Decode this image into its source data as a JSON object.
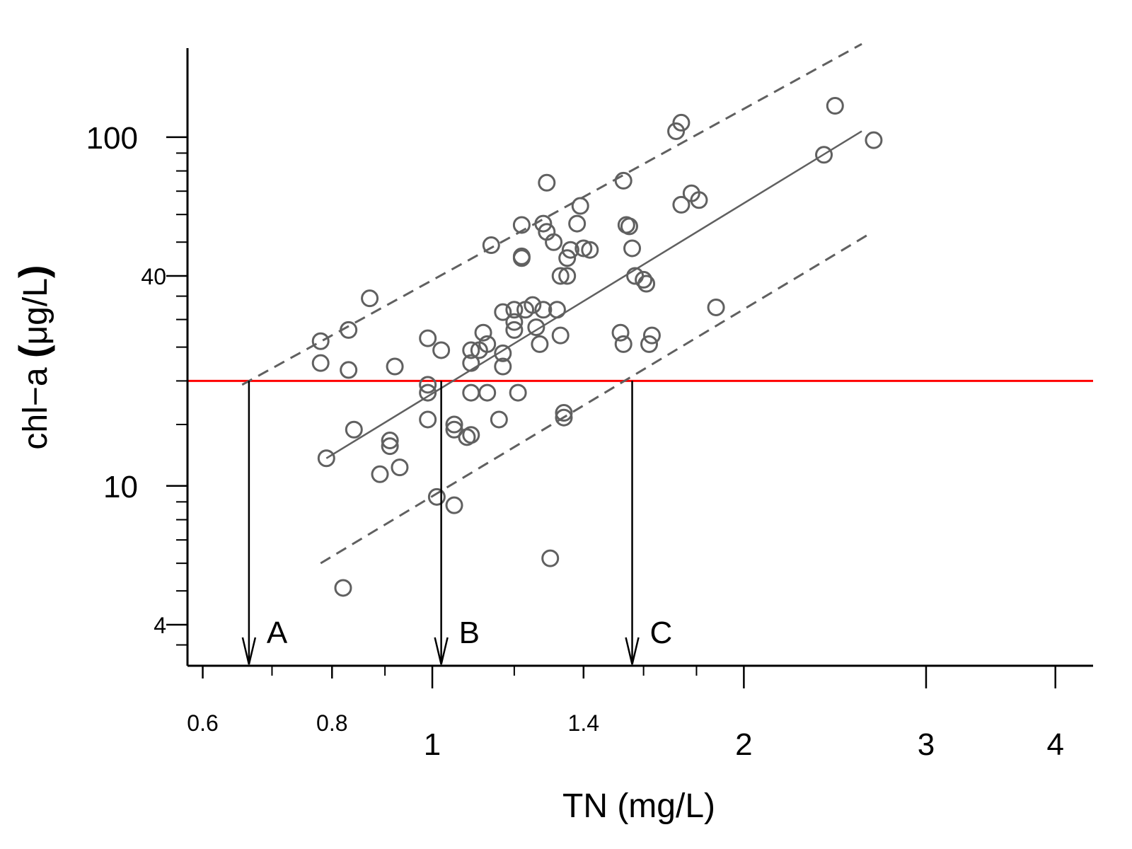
{
  "chart_data": {
    "type": "scatter",
    "title": "",
    "xlabel": "TN (mg/L)",
    "ylabel_parts": [
      "chl−a ",
      "(",
      "μg/L",
      ")"
    ],
    "xscale": "log",
    "yscale": "log",
    "xlim": [
      0.58,
      4.35
    ],
    "ylim": [
      3.05,
      180
    ],
    "grid": false,
    "legend": "none",
    "x_ticks": [
      {
        "value": 0.6,
        "label": "0.6",
        "major": false
      },
      {
        "value": 0.8,
        "label": "0.8",
        "major": false
      },
      {
        "value": 1.0,
        "label": "1",
        "major": true
      },
      {
        "value": 1.4,
        "label": "1.4",
        "major": false
      },
      {
        "value": 2.0,
        "label": "2",
        "major": true
      },
      {
        "value": 3.0,
        "label": "3",
        "major": true
      },
      {
        "value": 4.0,
        "label": "4",
        "major": true
      }
    ],
    "x_minor_ticks": [
      0.7,
      0.9,
      1.2,
      1.6,
      1.8
    ],
    "y_ticks": [
      {
        "value": 100,
        "label": "100",
        "major": true
      },
      {
        "value": 40,
        "label": "40",
        "major": false
      },
      {
        "value": 10,
        "label": "10",
        "major": true
      },
      {
        "value": 4,
        "label": "4",
        "major": false
      }
    ],
    "y_minor_ticks": [
      3.5,
      5,
      6,
      7,
      8,
      9,
      15,
      20,
      25,
      30,
      35,
      50,
      60,
      70,
      80,
      90
    ],
    "threshold": {
      "y": 20,
      "color": "#ff0000"
    },
    "fit_line": {
      "x": [
        0.79,
        2.6
      ],
      "y": [
        12.0,
        104.0
      ],
      "color": "#606060"
    },
    "upper_band": {
      "x": [
        0.655,
        2.6
      ],
      "y": [
        19.5,
        185
      ],
      "color": "#606060"
    },
    "lower_band": {
      "x": [
        0.78,
        2.65
      ],
      "y": [
        6.0,
        53.0
      ],
      "color": "#606060"
    },
    "arrows": [
      {
        "label": "A",
        "x": 0.665
      },
      {
        "label": "B",
        "x": 1.02
      },
      {
        "label": "C",
        "x": 1.56
      }
    ],
    "marker_color": "#606060",
    "points": [
      {
        "x": 0.78,
        "y": 26
      },
      {
        "x": 0.78,
        "y": 22.5
      },
      {
        "x": 0.79,
        "y": 12
      },
      {
        "x": 0.83,
        "y": 21.5
      },
      {
        "x": 0.83,
        "y": 28
      },
      {
        "x": 0.84,
        "y": 14.5
      },
      {
        "x": 0.82,
        "y": 5.1
      },
      {
        "x": 0.87,
        "y": 34.5
      },
      {
        "x": 0.89,
        "y": 10.8
      },
      {
        "x": 0.91,
        "y": 13
      },
      {
        "x": 0.91,
        "y": 13.5
      },
      {
        "x": 0.92,
        "y": 22
      },
      {
        "x": 0.93,
        "y": 11.3
      },
      {
        "x": 0.99,
        "y": 26.5
      },
      {
        "x": 0.99,
        "y": 18.5
      },
      {
        "x": 0.99,
        "y": 19.5
      },
      {
        "x": 0.99,
        "y": 15.5
      },
      {
        "x": 1.01,
        "y": 9.3
      },
      {
        "x": 1.02,
        "y": 24.5
      },
      {
        "x": 1.05,
        "y": 14.5
      },
      {
        "x": 1.05,
        "y": 15
      },
      {
        "x": 1.05,
        "y": 8.8
      },
      {
        "x": 1.08,
        "y": 13.8
      },
      {
        "x": 1.09,
        "y": 14
      },
      {
        "x": 1.09,
        "y": 18.5
      },
      {
        "x": 1.09,
        "y": 22.5
      },
      {
        "x": 1.09,
        "y": 24.5
      },
      {
        "x": 1.11,
        "y": 24.5
      },
      {
        "x": 1.12,
        "y": 27.5
      },
      {
        "x": 1.13,
        "y": 18.5
      },
      {
        "x": 1.13,
        "y": 25.5
      },
      {
        "x": 1.14,
        "y": 49
      },
      {
        "x": 1.16,
        "y": 15.5
      },
      {
        "x": 1.17,
        "y": 22
      },
      {
        "x": 1.17,
        "y": 24
      },
      {
        "x": 1.17,
        "y": 31.5
      },
      {
        "x": 1.2,
        "y": 28
      },
      {
        "x": 1.2,
        "y": 29.5
      },
      {
        "x": 1.2,
        "y": 32
      },
      {
        "x": 1.21,
        "y": 18.5
      },
      {
        "x": 1.22,
        "y": 45.5
      },
      {
        "x": 1.22,
        "y": 45
      },
      {
        "x": 1.22,
        "y": 56
      },
      {
        "x": 1.23,
        "y": 32
      },
      {
        "x": 1.25,
        "y": 33
      },
      {
        "x": 1.26,
        "y": 28.5
      },
      {
        "x": 1.27,
        "y": 25.5
      },
      {
        "x": 1.28,
        "y": 56.5
      },
      {
        "x": 1.28,
        "y": 32
      },
      {
        "x": 1.29,
        "y": 53.5
      },
      {
        "x": 1.29,
        "y": 74
      },
      {
        "x": 1.3,
        "y": 6.2
      },
      {
        "x": 1.31,
        "y": 50
      },
      {
        "x": 1.32,
        "y": 32
      },
      {
        "x": 1.33,
        "y": 27
      },
      {
        "x": 1.33,
        "y": 40
      },
      {
        "x": 1.34,
        "y": 16.2
      },
      {
        "x": 1.34,
        "y": 15.7
      },
      {
        "x": 1.35,
        "y": 40
      },
      {
        "x": 1.35,
        "y": 45
      },
      {
        "x": 1.36,
        "y": 47.5
      },
      {
        "x": 1.38,
        "y": 56.5
      },
      {
        "x": 1.39,
        "y": 63.5
      },
      {
        "x": 1.4,
        "y": 48
      },
      {
        "x": 1.42,
        "y": 47.5
      },
      {
        "x": 1.52,
        "y": 27.5
      },
      {
        "x": 1.53,
        "y": 25.5
      },
      {
        "x": 1.53,
        "y": 75
      },
      {
        "x": 1.54,
        "y": 56
      },
      {
        "x": 1.55,
        "y": 55.5
      },
      {
        "x": 1.56,
        "y": 48
      },
      {
        "x": 1.57,
        "y": 40
      },
      {
        "x": 1.6,
        "y": 39
      },
      {
        "x": 1.61,
        "y": 38
      },
      {
        "x": 1.62,
        "y": 25.5
      },
      {
        "x": 1.63,
        "y": 27
      },
      {
        "x": 1.72,
        "y": 104
      },
      {
        "x": 1.74,
        "y": 110
      },
      {
        "x": 1.74,
        "y": 64
      },
      {
        "x": 1.78,
        "y": 69
      },
      {
        "x": 1.81,
        "y": 66
      },
      {
        "x": 1.88,
        "y": 32.5
      },
      {
        "x": 2.39,
        "y": 89
      },
      {
        "x": 2.45,
        "y": 123
      },
      {
        "x": 2.67,
        "y": 98
      }
    ]
  }
}
